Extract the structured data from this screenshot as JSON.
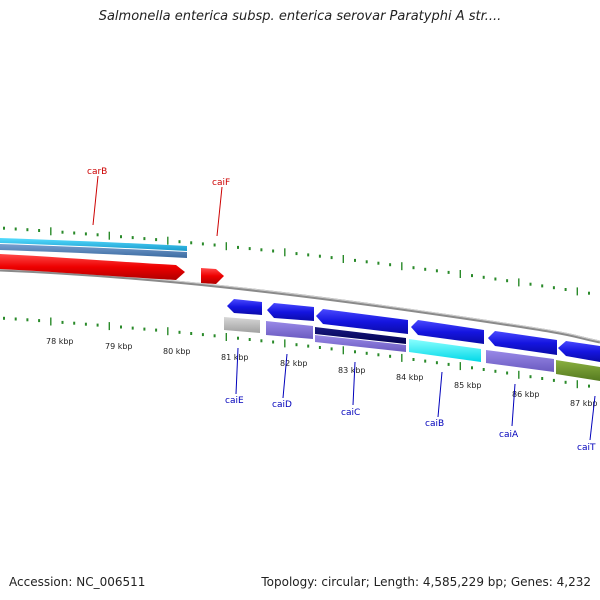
{
  "title": "Salmonella enterica subsp. enterica serovar Paratyphi A str....",
  "footer": {
    "accession": "Accession: NC_006511",
    "topology": "Topology: circular; Length: 4,585,229 bp; Genes: 4,232"
  },
  "colors": {
    "forward_label": "#cc0000",
    "reverse_label": "#0000bb",
    "tick": "#2a8a2a",
    "backbone": "#888888"
  },
  "kbp_labels": [
    "78 kbp",
    "79 kbp",
    "80 kbp",
    "81 kbp",
    "82 kbp",
    "83 kbp",
    "84 kbp",
    "85 kbp",
    "86 kbp",
    "87 kbp"
  ],
  "genes": [
    {
      "name": "carB",
      "strand": "forward",
      "color": "#ff0000"
    },
    {
      "name": "caiF",
      "strand": "forward",
      "color": "#ff0000"
    },
    {
      "name": "caiE",
      "strand": "reverse",
      "color": "#1a1aee"
    },
    {
      "name": "caiD",
      "strand": "reverse",
      "color": "#1a1aee"
    },
    {
      "name": "caiC",
      "strand": "reverse",
      "color": "#1a1aee"
    },
    {
      "name": "caiB",
      "strand": "reverse",
      "color": "#1a1aee"
    },
    {
      "name": "caiA",
      "strand": "reverse",
      "color": "#1a1aee"
    },
    {
      "name": "caiT",
      "strand": "reverse",
      "color": "#1a1aee"
    }
  ]
}
